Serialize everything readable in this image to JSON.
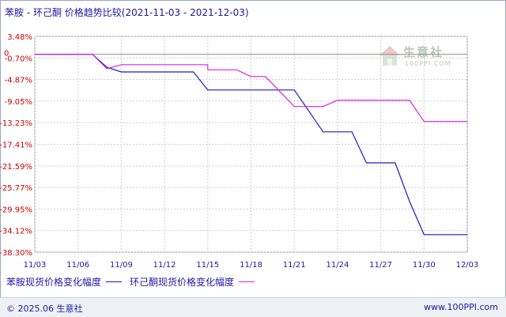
{
  "title": "苯胺 - 环己酮 价格趋势比较(2021-11-03 - 2021-12-03)",
  "watermark": {
    "name": "生意社",
    "url": "100PPI.COM"
  },
  "footer": {
    "copyright": "© 2025.06 生意社",
    "url": "www.100PPI.com"
  },
  "chart_data": {
    "type": "line",
    "x_ticks": [
      "11/03",
      "11/06",
      "11/09",
      "11/12",
      "11/15",
      "11/18",
      "11/21",
      "11/24",
      "11/27",
      "11/30",
      "12/03"
    ],
    "y_ticks": [
      "3.48%",
      "-0.70%",
      "-4.87%",
      "-9.05%",
      "-13.23%",
      "-17.41%",
      "-21.59%",
      "-25.77%",
      "-29.95%",
      "-34.12%",
      "-38.30%"
    ],
    "zero_label": "0",
    "ylim": [
      -38.3,
      3.48
    ],
    "grid": true,
    "series": [
      {
        "name": "苯胺现货价格变化幅度",
        "color": "#1a1acc",
        "points": [
          [
            "11/03",
            0.0
          ],
          [
            "11/07",
            0.0
          ],
          [
            "11/08",
            -2.5
          ],
          [
            "11/09",
            -3.4
          ],
          [
            "11/14",
            -3.4
          ],
          [
            "11/15",
            -6.9
          ],
          [
            "11/21",
            -6.9
          ],
          [
            "11/23",
            -15.0
          ],
          [
            "11/25",
            -15.0
          ],
          [
            "11/26",
            -21.0
          ],
          [
            "11/28",
            -21.0
          ],
          [
            "11/29",
            -28.5
          ],
          [
            "11/30",
            -34.9
          ],
          [
            "12/03",
            -34.9
          ]
        ]
      },
      {
        "name": "环己酮现货价格变化幅度",
        "color": "#e020e0",
        "points": [
          [
            "11/03",
            0.0
          ],
          [
            "11/07",
            0.0
          ],
          [
            "11/08",
            -2.8
          ],
          [
            "11/09",
            -2.0
          ],
          [
            "11/15",
            -2.0
          ],
          [
            "11/15",
            -3.0
          ],
          [
            "11/17",
            -3.0
          ],
          [
            "11/18",
            -4.3
          ],
          [
            "11/19",
            -4.3
          ],
          [
            "11/21",
            -10.1
          ],
          [
            "11/23",
            -10.1
          ],
          [
            "11/24",
            -8.9
          ],
          [
            "11/29",
            -8.9
          ],
          [
            "11/30",
            -13.0
          ],
          [
            "12/03",
            -13.0
          ]
        ]
      }
    ]
  }
}
